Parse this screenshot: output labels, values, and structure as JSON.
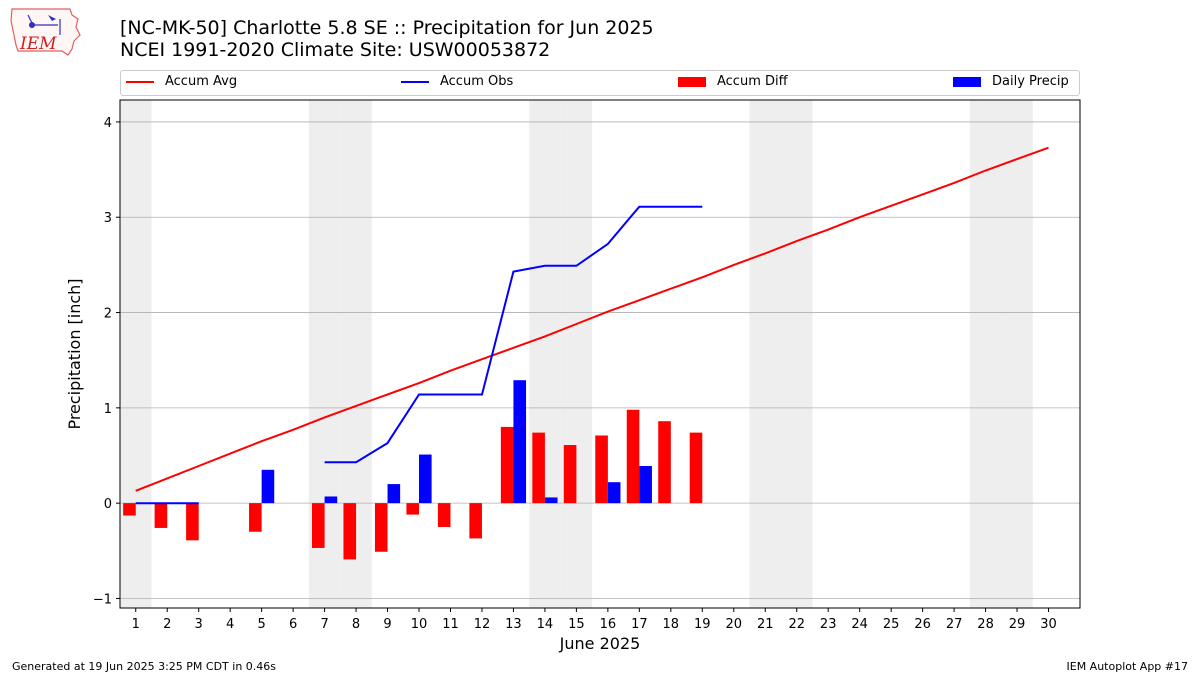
{
  "header": {
    "title_line1": "[NC-MK-50] Charlotte 5.8 SE :: Precipitation for Jun 2025",
    "title_line2": "NCEI 1991-2020 Climate Site: USW00053872",
    "logo_text": "IEM"
  },
  "legend": {
    "accum_avg": "Accum Avg",
    "accum_obs": "Accum Obs",
    "accum_diff": "Accum Diff",
    "daily_precip": "Daily Precip"
  },
  "colors": {
    "accum_avg": "#ff0000",
    "accum_obs": "#0000ff",
    "accum_diff": "#ff0000",
    "daily_precip": "#0000ff",
    "weekend_shade": "#eeeeee",
    "grid": "#b0b0b0"
  },
  "chart_data": {
    "type": "bar",
    "xlabel": "June 2025",
    "ylabel": "Precipitation [inch]",
    "xlim": [
      0.5,
      31.0
    ],
    "ylim": [
      -1.1,
      4.23
    ],
    "yticks": [
      -1,
      0,
      1,
      2,
      3,
      4
    ],
    "grid": "horizontal",
    "legend_position": "top",
    "x": [
      1,
      2,
      3,
      4,
      5,
      6,
      7,
      8,
      9,
      10,
      11,
      12,
      13,
      14,
      15,
      16,
      17,
      18,
      19,
      20,
      21,
      22,
      23,
      24,
      25,
      26,
      27,
      28,
      29,
      30
    ],
    "weekend_days": [
      1,
      7,
      8,
      14,
      15,
      21,
      22,
      28,
      29
    ],
    "series": [
      {
        "name": "Accum Avg",
        "type": "line",
        "values": [
          0.13,
          0.26,
          0.39,
          0.52,
          0.65,
          0.77,
          0.9,
          1.02,
          1.14,
          1.26,
          1.39,
          1.51,
          1.63,
          1.75,
          1.88,
          2.01,
          2.13,
          2.25,
          2.37,
          2.5,
          2.62,
          2.75,
          2.87,
          3.0,
          3.12,
          3.24,
          3.36,
          3.49,
          3.61,
          3.73
        ]
      },
      {
        "name": "Accum Obs",
        "type": "line",
        "values": [
          0.0,
          0.0,
          0.0,
          null,
          null,
          null,
          0.43,
          0.43,
          0.63,
          1.14,
          1.14,
          1.14,
          2.43,
          2.49,
          2.49,
          2.72,
          3.11,
          3.11,
          3.11,
          null,
          null,
          null,
          null,
          null,
          null,
          null,
          null,
          null,
          null,
          null
        ]
      },
      {
        "name": "Accum Diff",
        "type": "bar",
        "values": [
          -0.13,
          -0.26,
          -0.39,
          null,
          -0.3,
          null,
          -0.47,
          -0.59,
          -0.51,
          -0.12,
          -0.25,
          -0.37,
          0.8,
          0.74,
          0.61,
          0.71,
          0.98,
          0.86,
          0.74,
          null,
          null,
          null,
          null,
          null,
          null,
          null,
          null,
          null,
          null,
          null
        ]
      },
      {
        "name": "Daily Precip",
        "type": "bar",
        "values": [
          0.0,
          0.0,
          0.0,
          null,
          0.35,
          null,
          0.07,
          null,
          0.2,
          0.51,
          null,
          null,
          1.29,
          0.06,
          null,
          0.22,
          0.39,
          null,
          null,
          null,
          null,
          null,
          null,
          null,
          null,
          null,
          null,
          null,
          null,
          null
        ]
      }
    ]
  },
  "footer": {
    "generated": "Generated at 19 Jun 2025 3:25 PM CDT in 0.46s",
    "app": "IEM Autoplot App #17"
  }
}
